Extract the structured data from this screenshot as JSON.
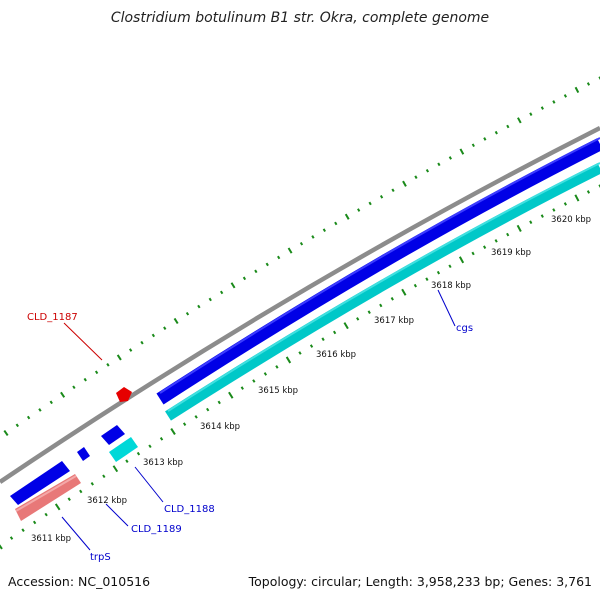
{
  "title": "Clostridium botulinum B1 str. Okra, complete genome",
  "footer": {
    "accession": "Accession: NC_010516",
    "summary": "Topology: circular; Length: 3,958,233 bp; Genes: 3,761"
  },
  "colors": {
    "backbone": "#8c8c8c",
    "forward_cds": "#0000e6",
    "reverse_cds": "#00c8c8",
    "trna_feature": "#e87878",
    "highlight_feature": "#e60000",
    "ticks": "#1a8a1a",
    "label_blue": "#0000cc",
    "label_red": "#cc0000"
  },
  "kbp_labels": [
    "3611 kbp",
    "3612 kbp",
    "3613 kbp",
    "3614 kbp",
    "3615 kbp",
    "3616 kbp",
    "3617 kbp",
    "3618 kbp",
    "3619 kbp",
    "3620 kbp"
  ],
  "gene_labels": {
    "cld_1187": "CLD_1187",
    "cld_1188": "CLD_1188",
    "cld_1189": "CLD_1189",
    "trps": "trpS",
    "cgs": "cgs"
  }
}
